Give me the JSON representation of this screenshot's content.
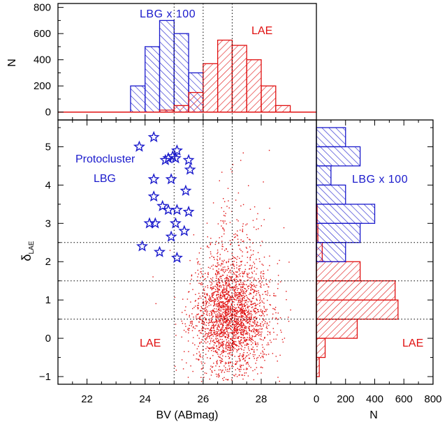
{
  "colors": {
    "lbg": "#1a1acc",
    "lae": "#e01010",
    "axis": "#000000",
    "guide": "#000000"
  },
  "chart_data": [
    {
      "panel": "scatter",
      "type": "scatter",
      "xlabel": "BV (ABmag)",
      "ylabel_main": "δ",
      "ylabel_sub": "LAE",
      "xlim": [
        21,
        29.9
      ],
      "ylim": [
        -1.2,
        5.7
      ],
      "xticks": [
        "22",
        "24",
        "26",
        "28"
      ],
      "yticks": [
        "−1",
        "0",
        "1",
        "2",
        "3",
        "4",
        "5"
      ],
      "guide_x": [
        25,
        26,
        27
      ],
      "guide_y": [
        0.5,
        1.5,
        2.5
      ],
      "series": [
        {
          "name": "Protocluster LBG",
          "marker": "star",
          "points": [
            [
              23.8,
              5.0
            ],
            [
              24.3,
              5.25
            ],
            [
              24.7,
              4.65
            ],
            [
              24.8,
              4.7
            ],
            [
              24.95,
              4.75
            ],
            [
              25.05,
              4.7
            ],
            [
              25.1,
              4.9
            ],
            [
              25.5,
              4.65
            ],
            [
              25.55,
              4.4
            ],
            [
              24.3,
              4.15
            ],
            [
              24.9,
              4.15
            ],
            [
              25.4,
              3.85
            ],
            [
              24.3,
              3.7
            ],
            [
              24.6,
              3.45
            ],
            [
              24.8,
              3.35
            ],
            [
              25.1,
              3.35
            ],
            [
              25.5,
              3.3
            ],
            [
              24.15,
              3.0
            ],
            [
              24.35,
              3.0
            ],
            [
              25.05,
              3.0
            ],
            [
              25.35,
              2.8
            ],
            [
              24.9,
              2.65
            ],
            [
              23.9,
              2.4
            ],
            [
              24.5,
              2.25
            ],
            [
              25.1,
              2.1
            ]
          ]
        },
        {
          "name": "LAE",
          "marker": "dot",
          "count": 2600,
          "center_x": 27.0,
          "sigma_x": 0.65,
          "center_y": 0.55,
          "sigma_y": 0.75
        }
      ],
      "annotations": [
        {
          "text": "Protocluster",
          "color": "lbg"
        },
        {
          "text": "LBG",
          "color": "lbg"
        },
        {
          "text": "LAE",
          "color": "lae"
        }
      ]
    },
    {
      "panel": "top-histogram",
      "type": "bar",
      "ylabel": "N",
      "ylim": [
        -60,
        830
      ],
      "yticks": [
        "0",
        "200",
        "400",
        "600",
        "800"
      ],
      "bin_edges": [
        23.5,
        24.0,
        24.5,
        25.0,
        25.5,
        26.0,
        26.5,
        27.0,
        27.5,
        28.0,
        28.5,
        29.0
      ],
      "series": [
        {
          "name": "LBG x 100",
          "color": "lbg",
          "hatch": "backslash",
          "values": [
            200,
            500,
            700,
            600,
            300,
            0,
            0,
            0,
            0,
            0,
            0
          ]
        },
        {
          "name": "LAE",
          "color": "lae",
          "hatch": "slash",
          "values": [
            0,
            0,
            15,
            50,
            150,
            370,
            550,
            510,
            400,
            200,
            50
          ]
        }
      ],
      "annotations": [
        {
          "text": "LBG x 100",
          "color": "lbg"
        },
        {
          "text": "LAE",
          "color": "lae"
        }
      ]
    },
    {
      "panel": "right-histogram",
      "type": "bar",
      "orientation": "horizontal",
      "xlabel": "N",
      "xlim": [
        0,
        800
      ],
      "xticks": [
        "0",
        "200",
        "400",
        "600",
        "800"
      ],
      "bin_edges": [
        -1.0,
        -0.5,
        0.0,
        0.5,
        1.0,
        1.5,
        2.0,
        2.5,
        3.0,
        3.5,
        4.0,
        4.5,
        5.0,
        5.5
      ],
      "series": [
        {
          "name": "LBG x 100",
          "color": "lbg",
          "hatch": "backslash",
          "values": [
            0,
            0,
            0,
            0,
            0,
            0,
            200,
            300,
            400,
            200,
            100,
            300,
            200
          ]
        },
        {
          "name": "LAE",
          "color": "lae",
          "hatch": "slash",
          "values": [
            20,
            60,
            280,
            560,
            540,
            300,
            40,
            10,
            5,
            0,
            0,
            0,
            0
          ]
        }
      ],
      "annotations": [
        {
          "text": "LBG x 100",
          "color": "lbg"
        },
        {
          "text": "LAE",
          "color": "lae"
        }
      ]
    }
  ]
}
